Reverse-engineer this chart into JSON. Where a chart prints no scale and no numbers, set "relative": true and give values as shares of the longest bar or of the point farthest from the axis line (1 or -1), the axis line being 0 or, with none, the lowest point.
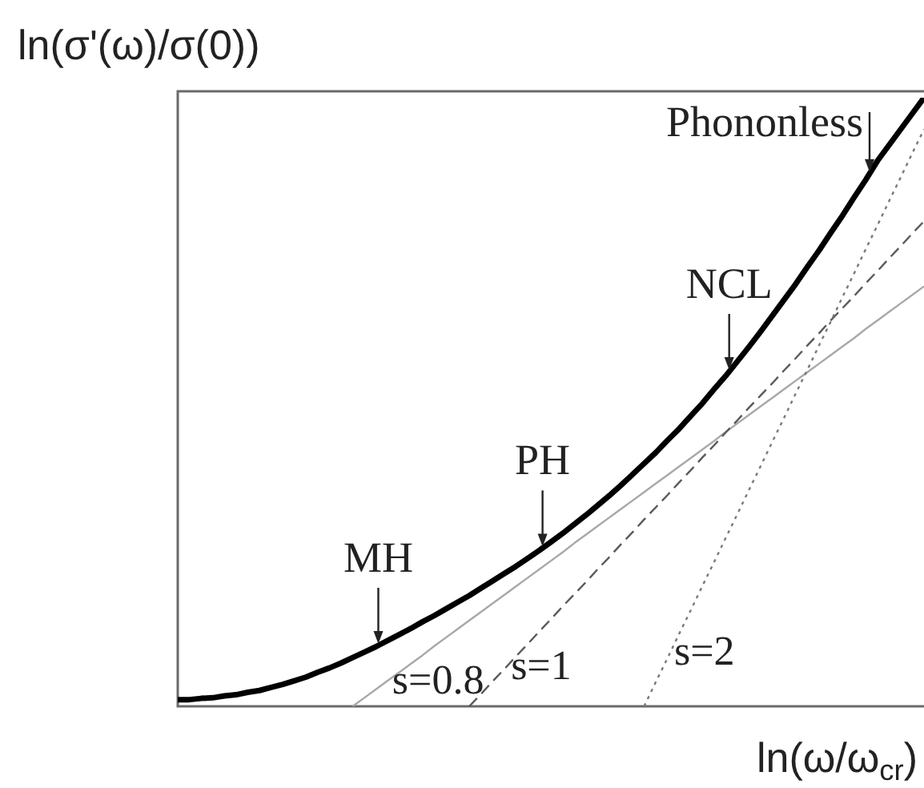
{
  "chart_data": {
    "type": "line",
    "relative": true,
    "ylabel": "ln(σ'(ω)/σ(0))",
    "xlabel": "ln(ω/ω$_{cr}$)",
    "marker": "none",
    "categories": [
      null,
      null,
      null,
      null,
      null,
      null,
      null,
      null,
      null,
      null,
      null,
      null,
      null,
      null,
      null,
      null,
      null,
      null,
      null,
      null,
      null,
      null,
      null,
      null,
      null,
      null,
      null,
      null,
      null,
      null,
      null,
      null,
      null,
      null,
      null,
      null,
      null,
      null,
      null,
      null,
      null,
      null,
      null,
      null,
      null,
      null,
      null,
      null,
      null,
      null,
      null,
      null,
      null,
      null,
      null,
      null,
      null,
      null,
      null,
      null,
      null,
      null,
      null,
      null,
      null
    ],
    "series": [
      {
        "color": "#000000",
        "line_style": "solid",
        "values": [
          0.011,
          0.011,
          0.013,
          0.014,
          0.017,
          0.019,
          0.023,
          0.026,
          0.031,
          0.036,
          0.042,
          0.048,
          0.056,
          0.063,
          0.071,
          0.08,
          0.089,
          0.098,
          0.108,
          0.118,
          0.128,
          0.139,
          0.149,
          0.16,
          0.171,
          0.182,
          0.194,
          0.206,
          0.218,
          0.23,
          0.243,
          0.256,
          0.27,
          0.284,
          0.299,
          0.314,
          0.33,
          0.346,
          0.363,
          0.381,
          0.399,
          0.417,
          0.437,
          0.456,
          0.477,
          0.498,
          0.521,
          0.543,
          0.567,
          0.591,
          0.616,
          0.642,
          0.668,
          0.694,
          0.722,
          0.749,
          0.778,
          0.806,
          0.836,
          0.865,
          0.896,
          0.922,
          0.948,
          0.974,
          1.0
        ]
      },
      {
        "name": "s=0.8",
        "color": "#a8a8a8",
        "line_style": "solid",
        "values": [
          null,
          null,
          null,
          null,
          null,
          null,
          null,
          null,
          null,
          null,
          null,
          null,
          null,
          null,
          null,
          0,
          0.014,
          0.028,
          0.042,
          0.056,
          0.07,
          0.084,
          0.099,
          0.113,
          0.127,
          0.141,
          0.155,
          0.169,
          0.183,
          0.197,
          0.211,
          0.225,
          0.239,
          0.253,
          0.268,
          0.282,
          0.296,
          0.31,
          0.324,
          0.338,
          0.352,
          0.366,
          0.38,
          0.394,
          0.408,
          0.422,
          0.436,
          0.451,
          0.465,
          0.479,
          0.493,
          0.507,
          0.521,
          0.535,
          0.549,
          0.563,
          0.577,
          0.591,
          0.605,
          0.62,
          0.634,
          0.648,
          0.662,
          0.676,
          0.69
        ]
      },
      {
        "name": "s=1",
        "color": "#5a5a5a",
        "line_style": "dashed",
        "values": [
          null,
          null,
          null,
          null,
          null,
          null,
          null,
          null,
          null,
          null,
          null,
          null,
          null,
          null,
          null,
          null,
          null,
          null,
          null,
          null,
          null,
          null,
          null,
          null,
          null,
          0,
          0.02,
          0.041,
          0.061,
          0.082,
          0.102,
          0.123,
          0.143,
          0.164,
          0.184,
          0.204,
          0.225,
          0.245,
          0.266,
          0.286,
          0.307,
          0.327,
          0.347,
          0.368,
          0.388,
          0.409,
          0.429,
          0.45,
          0.47,
          0.491,
          0.511,
          0.531,
          0.552,
          0.572,
          0.593,
          0.613,
          0.634,
          0.654,
          0.674,
          0.695,
          0.715,
          0.736,
          0.756,
          0.777,
          0.797
        ]
      },
      {
        "name": "s=2",
        "color": "#7a7a7a",
        "line_style": "dotted",
        "values": [
          null,
          null,
          null,
          null,
          null,
          null,
          null,
          null,
          null,
          null,
          null,
          null,
          null,
          null,
          null,
          null,
          null,
          null,
          null,
          null,
          null,
          null,
          null,
          null,
          null,
          null,
          null,
          null,
          null,
          null,
          null,
          null,
          null,
          null,
          null,
          null,
          null,
          null,
          null,
          null,
          0,
          0.04,
          0.079,
          0.119,
          0.158,
          0.198,
          0.237,
          0.277,
          0.316,
          0.356,
          0.395,
          0.435,
          0.474,
          0.514,
          0.553,
          0.593,
          0.632,
          0.672,
          0.711,
          0.751,
          0.79,
          0.83,
          0.869,
          0.909,
          0.948
        ]
      }
    ],
    "annotations": [
      {
        "text": "MH",
        "y": 0.1
      },
      {
        "text": "PH",
        "y": 0.26
      },
      {
        "text": "NCL",
        "y": 0.55
      },
      "Phononless"
    ]
  }
}
